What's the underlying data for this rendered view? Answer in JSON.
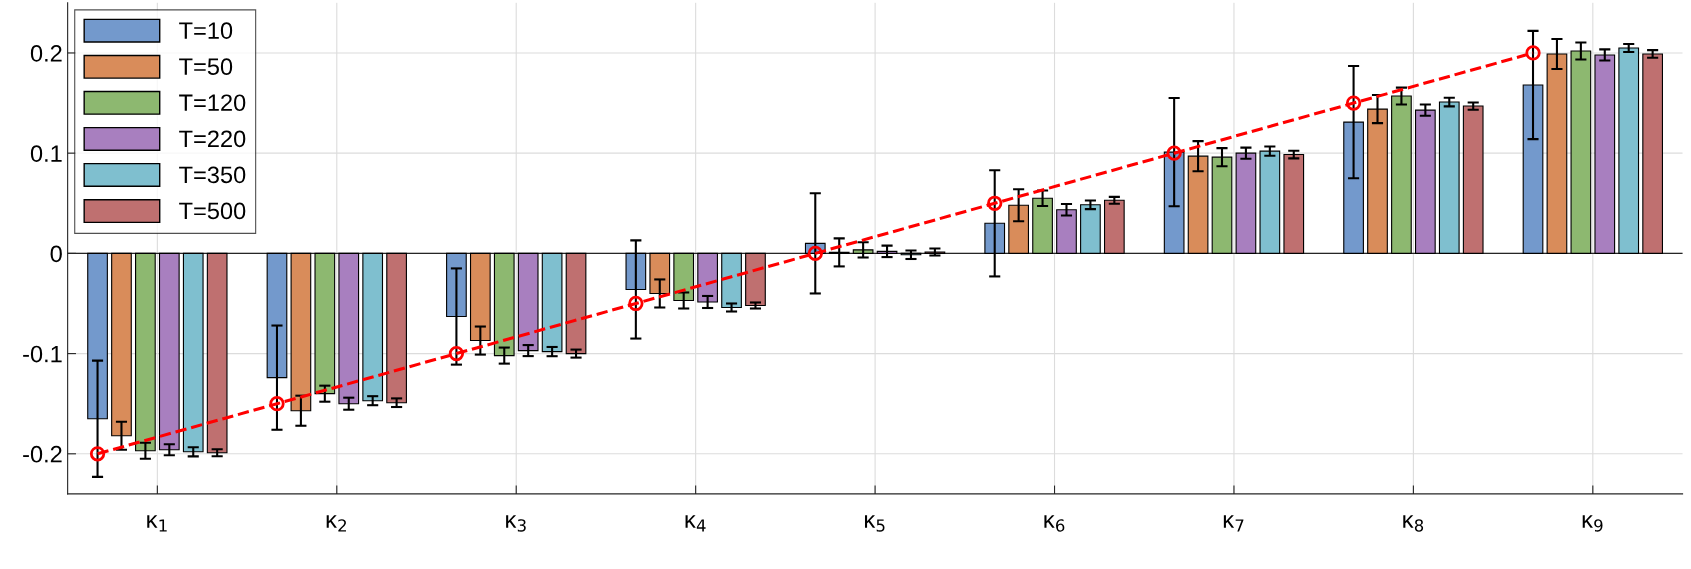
{
  "chart_data": {
    "type": "bar",
    "categories": [
      "κ$_{1}$",
      "κ$_{2}$",
      "κ$_{3}$",
      "κ$_{4}$",
      "κ$_{5}$",
      "κ$_{6}$",
      "κ$_{7}$",
      "κ$_{8}$",
      "κ$_{9}$"
    ],
    "series": [
      {
        "name": "T=10",
        "color": "#7399cc",
        "values": [
          -0.165,
          -0.124,
          -0.063,
          -0.036,
          0.01,
          0.03,
          0.101,
          0.131,
          0.168
        ],
        "errors": [
          0.058,
          0.052,
          0.048,
          0.049,
          0.05,
          0.053,
          0.054,
          0.056,
          0.054
        ]
      },
      {
        "name": "T=50",
        "color": "#d98c5a",
        "values": [
          -0.182,
          -0.157,
          -0.087,
          -0.04,
          0.001,
          0.048,
          0.097,
          0.144,
          0.199
        ],
        "errors": [
          0.014,
          0.015,
          0.014,
          0.014,
          0.014,
          0.016,
          0.015,
          0.014,
          0.015
        ]
      },
      {
        "name": "T=120",
        "color": "#8db870",
        "values": [
          -0.197,
          -0.14,
          -0.102,
          -0.047,
          0.0035,
          0.055,
          0.096,
          0.157,
          0.202
        ],
        "errors": [
          0.008,
          0.008,
          0.008,
          0.008,
          0.0076,
          0.0078,
          0.009,
          0.0084,
          0.0085
        ]
      },
      {
        "name": "T=220",
        "color": "#a87fbf",
        "values": [
          -0.196,
          -0.15,
          -0.097,
          -0.0485,
          0.002,
          0.0435,
          0.1,
          0.143,
          0.198
        ],
        "errors": [
          0.0055,
          0.006,
          0.0055,
          0.006,
          0.0057,
          0.0057,
          0.0055,
          0.0056,
          0.0056
        ]
      },
      {
        "name": "T=350",
        "color": "#7fbfcf",
        "values": [
          -0.198,
          -0.147,
          -0.098,
          -0.054,
          -0.0014,
          0.0485,
          0.102,
          0.151,
          0.205
        ],
        "errors": [
          0.0046,
          0.0045,
          0.0046,
          0.004,
          0.0042,
          0.0043,
          0.0046,
          0.0043,
          0.004
        ]
      },
      {
        "name": "T=500",
        "color": "#bf7070",
        "values": [
          -0.199,
          -0.149,
          -0.1,
          -0.052,
          0.0014,
          0.053,
          0.0986,
          0.147,
          0.199
        ],
        "errors": [
          0.0035,
          0.0043,
          0.004,
          0.003,
          0.0035,
          0.0034,
          0.0038,
          0.0036,
          0.0038
        ]
      },
      {
        "type": "line",
        "color": "#ff0000",
        "marker": "circle",
        "line_style": "dashed",
        "values": [
          -0.2,
          -0.15,
          -0.1,
          -0.05,
          0,
          0.05,
          0.1,
          0.15,
          0.2
        ]
      }
    ],
    "ylim": [
      -0.24,
      0.25
    ],
    "yticks": [
      -0.2,
      -0.1,
      0,
      0.1,
      0.2
    ],
    "ref_lines": [
      {
        "axis": "y",
        "value": 0,
        "color": "#262626"
      }
    ],
    "grid": true,
    "legend": "top left"
  }
}
